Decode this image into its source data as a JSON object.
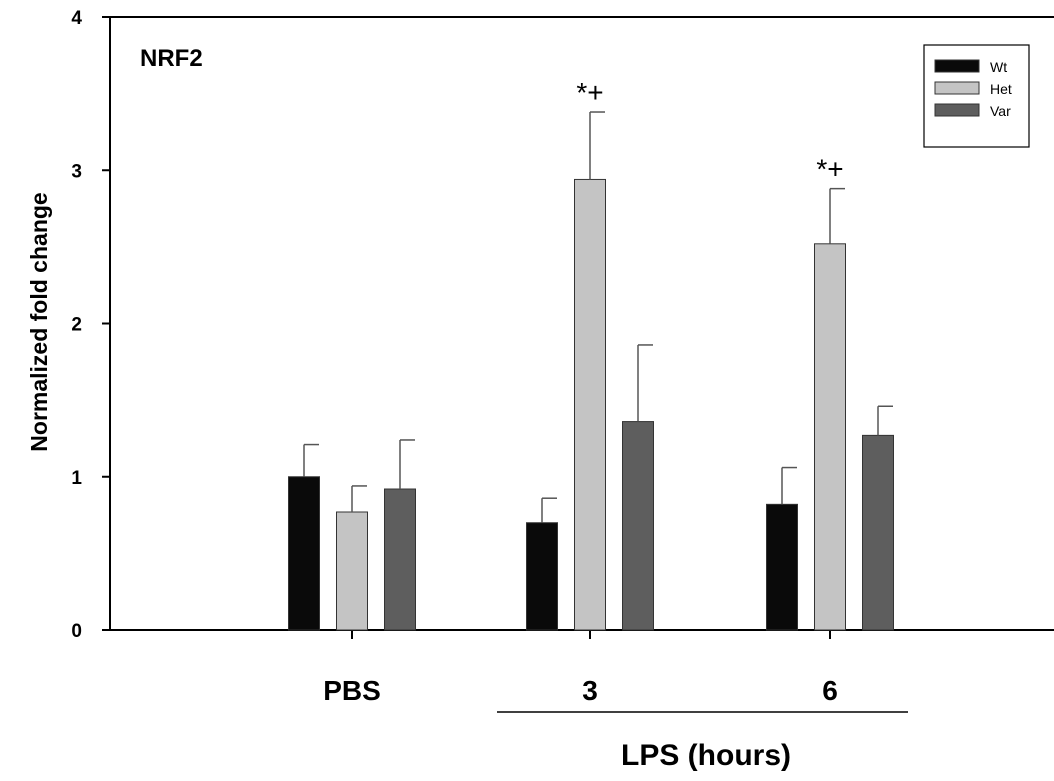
{
  "chart_data": {
    "type": "bar",
    "panel_label": "NRF2",
    "ylabel": "Normalized fold change",
    "xlabel": "LPS (hours)",
    "ylim": [
      0,
      4
    ],
    "yticks": [
      "0",
      "1",
      "2",
      "3",
      "4"
    ],
    "categories": [
      "PBS",
      "3",
      "6"
    ],
    "legend_position": "top-right",
    "series": [
      {
        "name": "Wt",
        "color": "#0a0a0a",
        "values": [
          1.0,
          0.7,
          0.82
        ],
        "errors": [
          0.21,
          0.16,
          0.24
        ]
      },
      {
        "name": "Het",
        "color": "#c4c4c4",
        "values": [
          0.77,
          2.94,
          2.52
        ],
        "errors": [
          0.17,
          0.44,
          0.36
        ]
      },
      {
        "name": "Var",
        "color": "#5e5e5e",
        "values": [
          0.92,
          1.36,
          1.27
        ],
        "errors": [
          0.32,
          0.5,
          0.19
        ]
      }
    ],
    "annotations": [
      {
        "category": "3",
        "text": "*+"
      },
      {
        "category": "6",
        "text": "*+"
      }
    ]
  }
}
